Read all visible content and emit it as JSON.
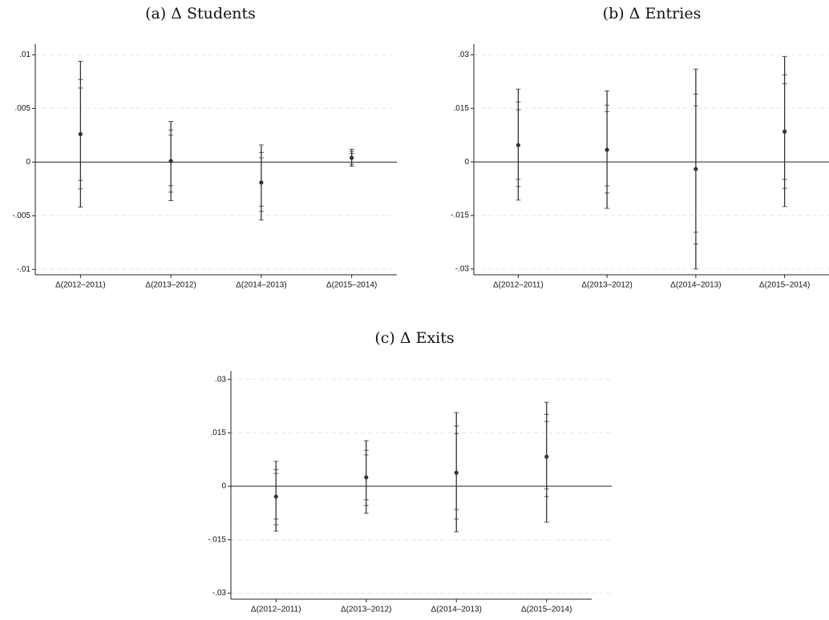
{
  "chart_data": [
    {
      "type": "errorbar",
      "title": "(a) Δ Students",
      "categories": [
        "Δ(2012–2011)",
        "Δ(2013–2012)",
        "Δ(2014–2013)",
        "Δ(2015–2014)"
      ],
      "values": [
        0.0026,
        0.0001,
        -0.0019,
        0.0004
      ],
      "intervals": [
        {
          "lower": [
            -0.0042,
            -0.0036,
            -0.0054,
            -0.0004
          ],
          "upper": [
            0.0094,
            0.0038,
            0.0016,
            0.0012
          ]
        },
        {
          "lower": [
            -0.0025,
            -0.0028,
            -0.0046,
            -0.0002
          ],
          "upper": [
            0.0077,
            0.003,
            0.0009,
            0.001
          ]
        },
        {
          "lower": [
            -0.0017,
            -0.0022,
            -0.0041,
            0.0
          ],
          "upper": [
            0.0069,
            0.0025,
            0.0004,
            0.0008
          ]
        }
      ],
      "color": "#333333",
      "ylim": [
        -0.0105,
        0.011
      ],
      "yticks": [
        {
          "value": -0.01,
          "label": "-.01"
        },
        {
          "value": -0.005,
          "label": "-.005"
        },
        0,
        {
          "value": 0.005,
          "label": ".005"
        },
        {
          "value": 0.01,
          "label": ".01"
        }
      ],
      "grid": true
    },
    {
      "type": "errorbar",
      "title": "(b) Δ Entries",
      "categories": [
        "Δ(2012–2011)",
        "Δ(2013–2012)",
        "Δ(2014–2013)",
        "Δ(2015–2014)"
      ],
      "values": [
        0.0047,
        0.0034,
        -0.002,
        0.0085
      ],
      "intervals": [
        {
          "lower": [
            -0.0107,
            -0.013,
            -0.03,
            -0.0125
          ],
          "upper": [
            0.0204,
            0.0199,
            0.026,
            0.0295
          ]
        },
        {
          "lower": [
            -0.0069,
            -0.0087,
            -0.023,
            -0.0074
          ],
          "upper": [
            0.0168,
            0.0159,
            0.019,
            0.0244
          ]
        },
        {
          "lower": [
            -0.0049,
            -0.0067,
            -0.0197,
            -0.0049
          ],
          "upper": [
            0.0146,
            0.0141,
            0.0157,
            0.0219
          ]
        }
      ],
      "color": "#333333",
      "ylim": [
        -0.0316,
        0.033
      ],
      "yticks": [
        {
          "value": -0.03,
          "label": "-.03"
        },
        {
          "value": -0.015,
          "label": "-.015"
        },
        0,
        {
          "value": 0.015,
          "label": ".015"
        },
        {
          "value": 0.03,
          "label": ".03"
        }
      ],
      "grid": true
    },
    {
      "type": "errorbar",
      "title": "(c) Δ Exits",
      "categories": [
        "Δ(2012–2011)",
        "Δ(2013–2012)",
        "Δ(2014–2013)",
        "Δ(2015–2014)"
      ],
      "values": [
        -0.0029,
        0.0025,
        0.0038,
        0.0083
      ],
      "intervals": [
        {
          "lower": [
            -0.0126,
            -0.0076,
            -0.0128,
            -0.0101
          ],
          "upper": [
            0.007,
            0.0128,
            0.0207,
            0.0236
          ]
        },
        {
          "lower": [
            -0.0108,
            -0.0054,
            -0.0092,
            -0.0029
          ],
          "upper": [
            0.0047,
            0.0101,
            0.0169,
            0.0202
          ]
        },
        {
          "lower": [
            -0.0092,
            -0.0038,
            -0.0065,
            -0.0007
          ],
          "upper": [
            0.0036,
            0.0088,
            0.0148,
            0.0182
          ]
        }
      ],
      "color": "#333333",
      "ylim": [
        -0.0317,
        0.0324
      ],
      "yticks": [
        {
          "value": -0.03,
          "label": "-.03"
        },
        {
          "value": -0.015,
          "label": "-.015"
        },
        0,
        {
          "value": 0.015,
          "label": ".015"
        },
        {
          "value": 0.03,
          "label": ".03"
        }
      ],
      "grid": true
    }
  ]
}
